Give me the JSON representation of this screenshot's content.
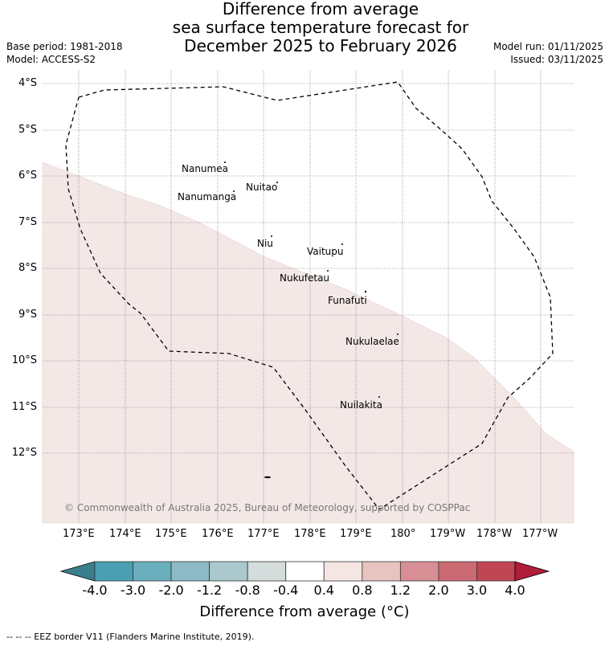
{
  "header": {
    "title_lines": [
      "Difference from average",
      "sea surface temperature forecast for",
      "December 2025 to February 2026"
    ],
    "base_period": "Base period: 1981-2018",
    "model": "Model: ACCESS-S2",
    "model_run": "Model run: 01/11/2025",
    "issued": "Issued: 03/11/2025"
  },
  "map": {
    "lat_labels": [
      "4°S",
      "5°S",
      "6°S",
      "7°S",
      "8°S",
      "9°S",
      "10°S",
      "11°S",
      "12°S"
    ],
    "lon_labels": [
      "173°E",
      "174°E",
      "175°E",
      "176°E",
      "177°E",
      "178°E",
      "179°E",
      "180°",
      "179°W",
      "178°W",
      "177°W"
    ],
    "islands": [
      "Nanumea",
      "Nuitao",
      "Nanumanga",
      "Niu",
      "Vaitupu",
      "Nukufetau",
      "Funafuti",
      "Nukulaelae",
      "Nuilakita"
    ],
    "copyright": "© Commonwealth of Australia 2025, Bureau of Meteorology, supported by COSPPac",
    "anomaly_region_color": "#f4e8e7",
    "anomaly_region_category": "0.4 to 0.8"
  },
  "colorbar": {
    "ticks": [
      "-4.0",
      "-3.0",
      "-2.0",
      "-1.2",
      "-0.8",
      "-0.4",
      "0.4",
      "0.8",
      "1.2",
      "2.0",
      "3.0",
      "4.0"
    ],
    "colors": [
      "#3a7f8e",
      "#4aa0b2",
      "#6aafbd",
      "#8dbac5",
      "#abc9cd",
      "#d4dcdc",
      "#ffffff",
      "#f5e6e4",
      "#e8c4c0",
      "#d88e95",
      "#cb6a73",
      "#c04655",
      "#b01d3a"
    ],
    "label": "Difference from average (°C)"
  },
  "footer": {
    "legend": "--  --  -- EEZ border V11 (Flanders Marine Institute, 2019)."
  }
}
